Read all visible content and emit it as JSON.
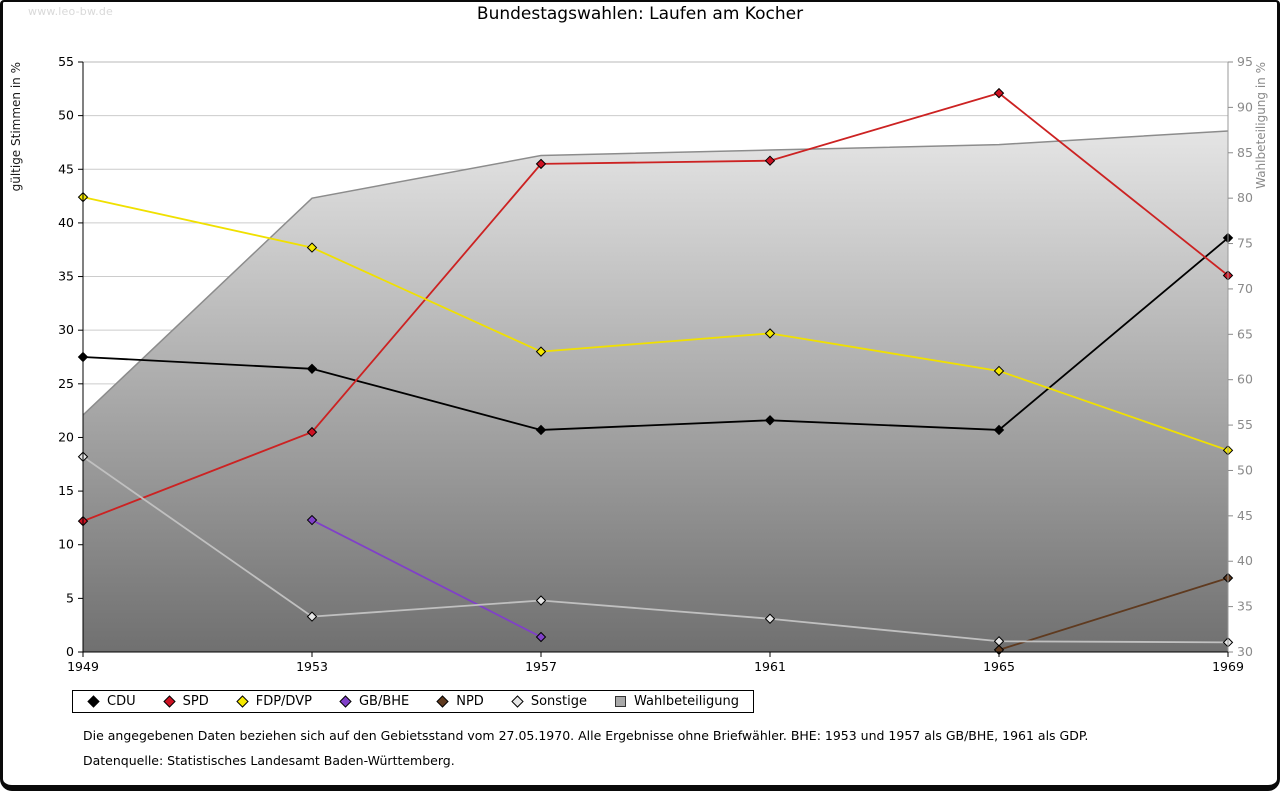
{
  "watermark": "www.leo-bw.de",
  "title": "Bundestagswahlen: Laufen am Kocher",
  "footnotes": {
    "line1": "Die angegebenen Daten beziehen sich auf den Gebietsstand vom 27.05.1970. Alle Ergebnisse ohne Briefwähler. BHE: 1953 und 1957 als GB/BHE, 1961 als GDP.",
    "line2": "Datenquelle: Statistisches Landesamt Baden-Württemberg."
  },
  "chart_data": {
    "type": "line",
    "title": "Bundestagswahlen: Laufen am Kocher",
    "categories": [
      "1949",
      "1953",
      "1957",
      "1961",
      "1965",
      "1969"
    ],
    "left_axis": {
      "label": "gültige Stimmen in %",
      "min": 0,
      "max": 55,
      "step": 5
    },
    "right_axis": {
      "label": "Wahlbeteiligung in %",
      "min": 30,
      "max": 95,
      "step": 5
    },
    "grid": true,
    "legend_position": "bottom",
    "area_series": {
      "name": "Wahlbeteiligung",
      "axis": "right",
      "values": [
        56.1,
        80.0,
        84.7,
        85.3,
        85.9,
        87.4
      ],
      "stroke": "#8c8c8c",
      "fill_top": "#f4f4f4",
      "fill_bottom": "#707070",
      "legend_fill": "#a9a9a9"
    },
    "series": [
      {
        "name": "CDU",
        "color": "#000000",
        "marker_fill": "#000000",
        "values": [
          27.5,
          26.4,
          20.7,
          21.6,
          20.7,
          38.6
        ]
      },
      {
        "name": "SPD",
        "color": "#cc2222",
        "marker_fill": "#cc1122",
        "values": [
          12.2,
          20.5,
          45.5,
          45.8,
          52.1,
          35.1
        ]
      },
      {
        "name": "FDP/DVP",
        "color": "#f0e000",
        "marker_fill": "#f5e800",
        "values": [
          42.4,
          37.7,
          28.0,
          29.7,
          26.2,
          18.8
        ]
      },
      {
        "name": "GB/BHE",
        "color": "#8040c8",
        "marker_fill": "#8040c8",
        "values": [
          null,
          12.3,
          1.4,
          null,
          null,
          null
        ]
      },
      {
        "name": "NPD",
        "color": "#5f3a1f",
        "marker_fill": "#5f3a1f",
        "values": [
          null,
          null,
          null,
          null,
          0.2,
          6.9
        ]
      },
      {
        "name": "Sonstige",
        "color": "#c0c0c0",
        "marker_fill": "#e6e6e6",
        "values": [
          18.2,
          3.3,
          4.8,
          3.1,
          1.0,
          0.9
        ]
      }
    ]
  }
}
